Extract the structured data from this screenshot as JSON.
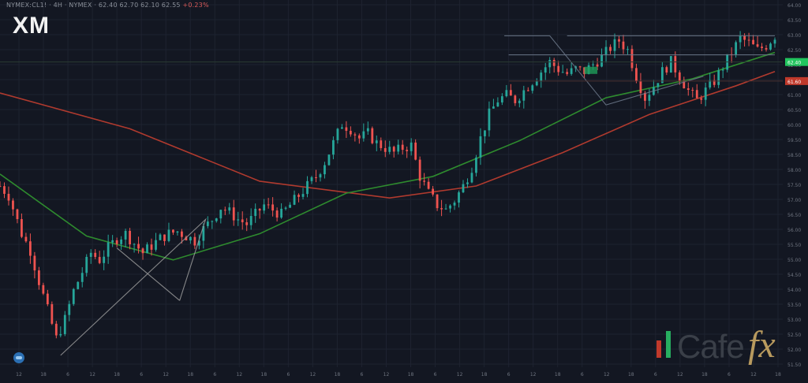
{
  "header": {
    "symbol_line": "NYMEX:CL1! · 4H · NYMEX · 62.40 62.70 62.10 62.55",
    "highlight": "+0.23%"
  },
  "brand": {
    "name": "XM",
    "sub": ""
  },
  "watermark": {
    "text": "Cafe",
    "fx": "fx"
  },
  "colors": {
    "background": "#131722",
    "bull": "#26a69a",
    "bear": "#ef5350",
    "ema_fast": "#2e8b2e",
    "ema_slow": "#b03a2e",
    "pattern": "#9a9a9a",
    "current_price": "#22c55e",
    "marker": "#c0392b"
  },
  "chart_data": {
    "type": "candlestick",
    "title": "",
    "xlabel": "",
    "ylabel": "",
    "grid": true,
    "n_bars": 180,
    "current_price": 62.4,
    "current_price_label": "62.40",
    "marker_label": "61.60",
    "y_ticks": [
      "64.00",
      "63.50",
      "63.00",
      "62.50",
      "62.00",
      "61.50",
      "61.00",
      "60.50",
      "60.00",
      "59.50",
      "58.50",
      "58.00",
      "57.50",
      "57.00",
      "56.50",
      "56.00",
      "55.50",
      "55.00",
      "54.50",
      "54.00",
      "53.50",
      "53.00",
      "52.50",
      "52.00",
      "51.50"
    ],
    "x_ticks": [
      "12",
      "18",
      "6",
      "12",
      "18",
      "6",
      "12",
      "18",
      "6",
      "12",
      "18",
      "6",
      "12",
      "18",
      "6",
      "12",
      "18",
      "6",
      "12",
      "18",
      "6",
      "12",
      "18",
      "6",
      "12",
      "18",
      "6",
      "12",
      "18",
      "6",
      "12",
      "18"
    ],
    "close_path": [
      [
        0,
        57.2
      ],
      [
        4,
        56.8
      ],
      [
        10,
        55.2
      ],
      [
        14,
        54.5
      ],
      [
        18,
        53.2
      ],
      [
        22,
        52.0
      ],
      [
        26,
        50.8
      ],
      [
        30,
        51.6
      ],
      [
        34,
        52.8
      ],
      [
        38,
        53.6
      ],
      [
        42,
        54.4
      ],
      [
        46,
        54.1
      ],
      [
        50,
        54.6
      ],
      [
        54,
        55.0
      ],
      [
        58,
        55.2
      ],
      [
        62,
        54.8
      ],
      [
        66,
        54.4
      ],
      [
        70,
        54.7
      ],
      [
        74,
        55.0
      ],
      [
        78,
        55.2
      ],
      [
        82,
        55.3
      ],
      [
        86,
        55.1
      ],
      [
        90,
        54.9
      ],
      [
        94,
        55.4
      ],
      [
        98,
        55.8
      ],
      [
        102,
        56.3
      ],
      [
        106,
        56.1
      ],
      [
        110,
        55.8
      ],
      [
        114,
        55.6
      ],
      [
        118,
        56.0
      ],
      [
        122,
        56.4
      ],
      [
        126,
        56.2
      ],
      [
        130,
        56.0
      ],
      [
        134,
        56.4
      ],
      [
        138,
        56.8
      ],
      [
        142,
        57.2
      ],
      [
        146,
        57.6
      ],
      [
        150,
        58.2
      ],
      [
        154,
        59.0
      ],
      [
        158,
        59.8
      ],
      [
        162,
        59.6
      ],
      [
        166,
        59.2
      ],
      [
        170,
        59.4
      ],
      [
        174,
        59.0
      ],
      [
        178,
        58.8
      ],
      [
        182,
        58.6
      ],
      [
        186,
        58.8
      ],
      [
        190,
        58.9
      ],
      [
        194,
        57.6
      ],
      [
        198,
        56.9
      ],
      [
        202,
        56.4
      ],
      [
        206,
        56.2
      ],
      [
        210,
        56.6
      ],
      [
        214,
        57.2
      ],
      [
        218,
        58.0
      ],
      [
        222,
        59.2
      ],
      [
        226,
        60.2
      ],
      [
        230,
        60.8
      ],
      [
        234,
        61.0
      ],
      [
        238,
        60.8
      ],
      [
        242,
        61.2
      ],
      [
        246,
        61.6
      ],
      [
        250,
        62.0
      ],
      [
        254,
        62.4
      ],
      [
        258,
        62.1
      ],
      [
        262,
        61.9
      ],
      [
        266,
        62.1
      ],
      [
        270,
        62.0
      ],
      [
        274,
        62.3
      ],
      [
        278,
        62.6
      ],
      [
        282,
        63.0
      ],
      [
        286,
        63.3
      ],
      [
        290,
        62.9
      ],
      [
        294,
        61.8
      ],
      [
        298,
        60.9
      ],
      [
        302,
        61.4
      ],
      [
        306,
        62.0
      ],
      [
        310,
        62.4
      ],
      [
        314,
        61.8
      ],
      [
        318,
        61.2
      ],
      [
        322,
        60.8
      ],
      [
        326,
        61.2
      ],
      [
        330,
        61.6
      ],
      [
        334,
        62.2
      ],
      [
        338,
        62.8
      ],
      [
        342,
        63.4
      ],
      [
        346,
        63.2
      ],
      [
        350,
        62.9
      ],
      [
        354,
        63.1
      ],
      [
        358,
        63.5
      ]
    ],
    "series": [
      {
        "values_path": [
          [
            0,
            57.7
          ],
          [
            40,
            55.1
          ],
          [
            80,
            54.1
          ],
          [
            120,
            55.2
          ],
          [
            160,
            56.9
          ],
          [
            200,
            57.6
          ],
          [
            240,
            59.1
          ],
          [
            280,
            60.9
          ],
          [
            320,
            61.7
          ],
          [
            358,
            62.8
          ]
        ]
      },
      {
        "values_path": [
          [
            0,
            61.1
          ],
          [
            60,
            59.6
          ],
          [
            120,
            57.4
          ],
          [
            180,
            56.7
          ],
          [
            220,
            57.2
          ],
          [
            260,
            58.6
          ],
          [
            300,
            60.2
          ],
          [
            340,
            61.4
          ],
          [
            358,
            62.0
          ]
        ]
      }
    ],
    "annotations": {
      "pattern_lines": [
        [
          [
            28,
            50.1
          ],
          [
            95,
            55.8
          ],
          [
            83,
            52.4
          ],
          [
            95,
            55.8
          ]
        ],
        [
          [
            54,
            54.6
          ],
          [
            83,
            52.4
          ]
        ],
        [
          [
            233,
            63.5
          ],
          [
            254,
            63.5
          ],
          [
            280,
            60.6
          ],
          [
            325,
            61.8
          ]
        ],
        [
          [
            235,
            62.7
          ],
          [
            358,
            62.7
          ]
        ],
        [
          [
            262,
            63.5
          ],
          [
            358,
            63.5
          ]
        ]
      ],
      "pattern_points": [
        [
          28,
          50.1
        ],
        [
          54,
          54.6
        ],
        [
          83,
          52.4
        ],
        [
          95,
          55.8
        ],
        [
          218,
          60.6
        ],
        [
          254,
          63.5
        ],
        [
          280,
          60.6
        ]
      ],
      "supply_zone": [
        [
          270,
          276
        ],
        [
          61.9,
          62.2
        ]
      ]
    }
  }
}
